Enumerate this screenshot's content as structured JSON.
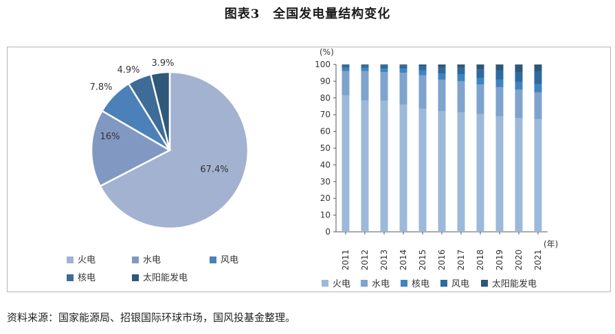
{
  "figure": {
    "title": "图表3　全国发电量结构变化",
    "source": "资料来源：国家能源局、招银国际环球市场，国风投基金整理。"
  },
  "colors": {
    "火电": "#9cb9da",
    "水电": "#7ea3cd",
    "核电": "#3f84c1",
    "风电": "#2f6a9f",
    "太阳能发电": "#2f5878",
    "pie_火电": "#a3b2d0",
    "pie_水电": "#8199c2",
    "pie_风电": "#4c80b9",
    "pie_核电": "#3d6c99",
    "pie_太阳能发电": "#305878"
  },
  "chart_data": [
    {
      "type": "pie",
      "labels": [
        "火电",
        "水电",
        "风电",
        "核电",
        "太阳能发电"
      ],
      "values": [
        67.4,
        16,
        7.8,
        4.9,
        3.9
      ],
      "value_labels": [
        "67.4%",
        "16%",
        "7.8%",
        "4.9%",
        "3.9%"
      ],
      "legend_rows": [
        [
          "火电",
          "水电",
          "风电"
        ],
        [
          "核电",
          "太阳能发电"
        ]
      ],
      "legend_placement": "bottom"
    },
    {
      "type": "bar",
      "stacked": true,
      "categories": [
        "2011",
        "2012",
        "2013",
        "2014",
        "2015",
        "2016",
        "2017",
        "2018",
        "2019",
        "2020",
        "2021"
      ],
      "y_unit_label": "(%)",
      "x_unit_label": "(年)",
      "ylim": [
        0,
        100
      ],
      "yticks": [
        0,
        10,
        20,
        30,
        40,
        50,
        60,
        70,
        80,
        90,
        100
      ],
      "grid": false,
      "legend_placement": "bottom",
      "series": [
        {
          "name": "火电",
          "values": [
            81.5,
            78.5,
            78.5,
            76,
            73.5,
            72,
            71.5,
            70.5,
            69,
            68,
            67.4
          ]
        },
        {
          "name": "水电",
          "values": [
            14.5,
            17.5,
            17,
            19,
            20,
            19,
            18.5,
            17.5,
            17.5,
            17,
            16
          ]
        },
        {
          "name": "核电",
          "values": [
            2,
            2,
            2,
            2.5,
            3,
            3.5,
            4,
            4,
            4.5,
            4.5,
            4.9
          ]
        },
        {
          "name": "风电",
          "values": [
            1.5,
            1.5,
            2,
            2,
            2.5,
            3.5,
            4,
            5,
            5.5,
            6,
            7.8
          ]
        },
        {
          "name": "太阳能发电",
          "values": [
            0.5,
            0.5,
            0.5,
            0.5,
            1,
            2,
            2,
            3,
            3.5,
            4.5,
            3.9
          ]
        }
      ]
    }
  ]
}
